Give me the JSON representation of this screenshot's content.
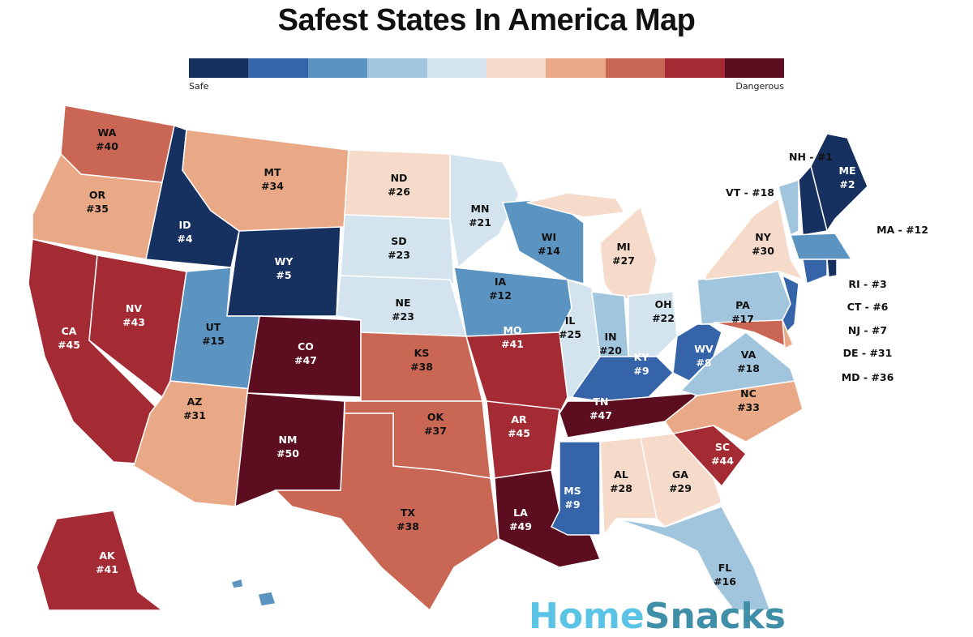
{
  "title": "Safest States In America Map",
  "legend": {
    "min_label": "Safe",
    "max_label": "Dangerous",
    "colors": [
      "#16305f",
      "#3565a8",
      "#5b93c1",
      "#a0c5dc",
      "#d3e4ef",
      "#f6dbca",
      "#e9a886",
      "#c96754",
      "#a42a33",
      "#5c0e20"
    ]
  },
  "states": [
    {
      "abbr": "WA",
      "rank": "#40",
      "color": "#c96754"
    },
    {
      "abbr": "OR",
      "rank": "#35",
      "color": "#e9a886"
    },
    {
      "abbr": "CA",
      "rank": "#45",
      "color": "#a42a33"
    },
    {
      "abbr": "NV",
      "rank": "#43",
      "color": "#a42a33"
    },
    {
      "abbr": "ID",
      "rank": "#4",
      "color": "#16305f"
    },
    {
      "abbr": "MT",
      "rank": "#34",
      "color": "#e9a886"
    },
    {
      "abbr": "WY",
      "rank": "#5",
      "color": "#16305f"
    },
    {
      "abbr": "UT",
      "rank": "#15",
      "color": "#5b93c1"
    },
    {
      "abbr": "AZ",
      "rank": "#31",
      "color": "#e9a886"
    },
    {
      "abbr": "CO",
      "rank": "#47",
      "color": "#5c0e20"
    },
    {
      "abbr": "NM",
      "rank": "#50",
      "color": "#5c0e20"
    },
    {
      "abbr": "ND",
      "rank": "#26",
      "color": "#f6dbca"
    },
    {
      "abbr": "SD",
      "rank": "#23",
      "color": "#d3e4ef"
    },
    {
      "abbr": "NE",
      "rank": "#23",
      "color": "#d3e4ef"
    },
    {
      "abbr": "KS",
      "rank": "#38",
      "color": "#c96754"
    },
    {
      "abbr": "OK",
      "rank": "#37",
      "color": "#c96754"
    },
    {
      "abbr": "TX",
      "rank": "#38",
      "color": "#c96754"
    },
    {
      "abbr": "MN",
      "rank": "#21",
      "color": "#d3e4ef"
    },
    {
      "abbr": "IA",
      "rank": "#12",
      "color": "#5b93c1"
    },
    {
      "abbr": "MO",
      "rank": "#41",
      "color": "#a42a33"
    },
    {
      "abbr": "AR",
      "rank": "#45",
      "color": "#a42a33"
    },
    {
      "abbr": "LA",
      "rank": "#49",
      "color": "#5c0e20"
    },
    {
      "abbr": "WI",
      "rank": "#14",
      "color": "#5b93c1"
    },
    {
      "abbr": "IL",
      "rank": "#25",
      "color": "#d3e4ef"
    },
    {
      "abbr": "MI",
      "rank": "#27",
      "color": "#f6dbca"
    },
    {
      "abbr": "IN",
      "rank": "#20",
      "color": "#a0c5dc"
    },
    {
      "abbr": "OH",
      "rank": "#22",
      "color": "#d3e4ef"
    },
    {
      "abbr": "KY",
      "rank": "#9",
      "color": "#3565a8"
    },
    {
      "abbr": "TN",
      "rank": "#47",
      "color": "#5c0e20"
    },
    {
      "abbr": "MS",
      "rank": "#9",
      "color": "#3565a8"
    },
    {
      "abbr": "AL",
      "rank": "#28",
      "color": "#f6dbca"
    },
    {
      "abbr": "GA",
      "rank": "#29",
      "color": "#f6dbca"
    },
    {
      "abbr": "FL",
      "rank": "#16",
      "color": "#a0c5dc"
    },
    {
      "abbr": "SC",
      "rank": "#44",
      "color": "#a42a33"
    },
    {
      "abbr": "NC",
      "rank": "#33",
      "color": "#e9a886"
    },
    {
      "abbr": "VA",
      "rank": "#18",
      "color": "#a0c5dc"
    },
    {
      "abbr": "WV",
      "rank": "#8",
      "color": "#3565a8"
    },
    {
      "abbr": "PA",
      "rank": "#17",
      "color": "#a0c5dc"
    },
    {
      "abbr": "NY",
      "rank": "#30",
      "color": "#f6dbca"
    },
    {
      "abbr": "ME",
      "rank": "#2",
      "color": "#16305f"
    },
    {
      "abbr": "AK",
      "rank": "#41",
      "color": "#a42a33"
    },
    {
      "abbr": "MD",
      "rank": "#36",
      "color": "#c96754"
    },
    {
      "abbr": "NJ",
      "rank": "#7",
      "color": "#3565a8"
    },
    {
      "abbr": "DE",
      "rank": "#31",
      "color": "#e9a886"
    },
    {
      "abbr": "VT",
      "rank": "#18",
      "color": "#a0c5dc"
    },
    {
      "abbr": "NH",
      "rank": "#1",
      "color": "#16305f"
    },
    {
      "abbr": "MA",
      "rank": "#12",
      "color": "#5b93c1"
    },
    {
      "abbr": "CT",
      "rank": "#6",
      "color": "#3565a8"
    },
    {
      "abbr": "RI",
      "rank": "#3",
      "color": "#16305f"
    },
    {
      "abbr": "HI",
      "rank": "",
      "color": "#5b93c1"
    }
  ],
  "callouts": [
    "NH - #1",
    "VT - #18",
    "MA - #12",
    "RI - #3",
    "CT - #6",
    "NJ - #7",
    "DE - #31",
    "MD - #36"
  ],
  "logo": {
    "part1": "Home",
    "part2": "Snacks"
  }
}
